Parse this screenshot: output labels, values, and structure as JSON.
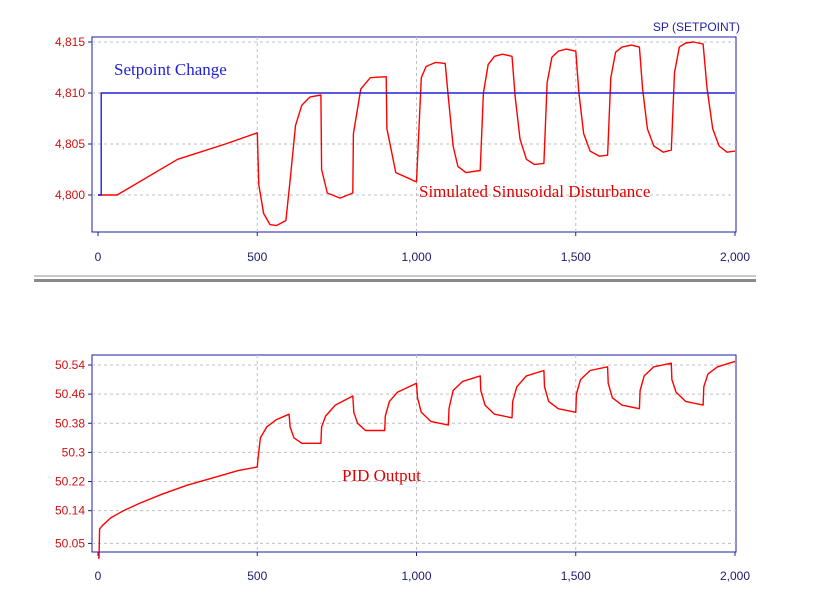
{
  "chart_data": [
    {
      "type": "line",
      "legend_label": "SP (SETPOINT)",
      "annotations": [
        "Setpoint Change",
        "Simulated Sinusoidal Disturbance"
      ],
      "x_ticks": [
        "0",
        "500",
        "1,000",
        "1,500",
        "2,000"
      ],
      "y_ticks": [
        "4,800",
        "4,805",
        "4,810",
        "4,815"
      ],
      "xlim": [
        0,
        2000
      ],
      "ylim": [
        4796.5,
        4816.5
      ],
      "grid": true,
      "colors": {
        "process": "#ff0000",
        "setpoint": "#2020d8",
        "axis": "#1e1ea0",
        "grid": "#c0c0c0"
      },
      "series": [
        {
          "x": [
            0,
            60,
            250,
            320,
            400,
            500,
            505,
            520,
            540,
            560,
            590,
            605,
            620,
            640,
            665,
            700,
            702,
            720,
            760,
            800,
            802,
            825,
            855,
            905,
            907,
            935,
            985,
            990,
            1000,
            1015,
            1030,
            1060,
            1090,
            1100,
            1115,
            1130,
            1155,
            1200,
            1210,
            1225,
            1245,
            1270,
            1300,
            1310,
            1325,
            1345,
            1370,
            1400,
            1410,
            1425,
            1445,
            1470,
            1500,
            1510,
            1525,
            1545,
            1575,
            1600,
            1610,
            1625,
            1645,
            1675,
            1700,
            1710,
            1725,
            1745,
            1775,
            1800,
            1810,
            1825,
            1845,
            1870,
            1900,
            1912,
            1930,
            1950,
            1975,
            2000
          ],
          "y": [
            4800,
            4800,
            4803.5,
            4804.2,
            4805,
            4806.1,
            4801,
            4798.2,
            4797.1,
            4797,
            4797.5,
            4802,
            4806.8,
            4808.8,
            4809.6,
            4809.8,
            4802.5,
            4800.2,
            4799.7,
            4800.2,
            4806,
            4810.4,
            4811.5,
            4811.6,
            4806.5,
            4802.2,
            4801.5,
            4801.4,
            4801.3,
            4811.5,
            4812.6,
            4813,
            4812.9,
            4809.5,
            4804.8,
            4802.8,
            4802.2,
            4802.4,
            4810,
            4812.8,
            4813.6,
            4813.8,
            4813.6,
            4809.6,
            4805.5,
            4803.5,
            4803,
            4803.1,
            4811,
            4813.5,
            4814.1,
            4814.3,
            4814.1,
            4810,
            4806,
            4804.3,
            4803.8,
            4803.9,
            4811.5,
            4814,
            4814.5,
            4814.7,
            4814.5,
            4810.4,
            4806.5,
            4804.8,
            4804.2,
            4804.4,
            4812,
            4814.5,
            4814.9,
            4815,
            4814.8,
            4810.5,
            4806.5,
            4804.8,
            4804.2,
            4804.3
          ]
        },
        {
          "x": [
            0,
            10,
            10,
            2000
          ],
          "y": [
            4800,
            4800,
            4810,
            4810
          ]
        }
      ]
    },
    {
      "type": "line",
      "annotations": [
        "PID Output"
      ],
      "x_ticks": [
        "0",
        "500",
        "1,000",
        "1,500",
        "2,000"
      ],
      "y_ticks": [
        "50.05",
        "50.14",
        "50.22",
        "50.3",
        "50.38",
        "50.46",
        "50.54"
      ],
      "xlim": [
        0,
        2000
      ],
      "ylim": [
        50.0,
        50.56
      ],
      "grid": true,
      "colors": {
        "output": "#ff0000",
        "axis": "#1e1ea0",
        "grid": "#c0c0c0"
      },
      "series": [
        {
          "x": [
            0,
            3,
            5,
            15,
            40,
            80,
            130,
            200,
            280,
            360,
            440,
            500,
            502,
            510,
            530,
            560,
            600,
            603,
            615,
            640,
            700,
            702,
            715,
            745,
            800,
            803,
            815,
            840,
            900,
            902,
            915,
            940,
            1000,
            1003,
            1015,
            1045,
            1100,
            1102,
            1115,
            1145,
            1200,
            1202,
            1215,
            1245,
            1300,
            1302,
            1315,
            1345,
            1400,
            1402,
            1415,
            1445,
            1500,
            1502,
            1515,
            1545,
            1600,
            1602,
            1615,
            1645,
            1700,
            1702,
            1715,
            1745,
            1800,
            1802,
            1815,
            1845,
            1900,
            1902,
            1915,
            1945,
            2000
          ],
          "y": [
            50.01,
            50.01,
            50.09,
            50.1,
            50.12,
            50.14,
            50.16,
            50.185,
            50.21,
            50.23,
            50.25,
            50.26,
            50.28,
            50.34,
            50.37,
            50.39,
            50.405,
            50.37,
            50.34,
            50.325,
            50.325,
            50.37,
            50.4,
            50.43,
            50.455,
            50.41,
            50.38,
            50.36,
            50.36,
            50.4,
            50.44,
            50.465,
            50.49,
            50.45,
            50.41,
            50.385,
            50.375,
            50.42,
            50.47,
            50.495,
            50.51,
            50.47,
            50.43,
            50.405,
            50.395,
            50.44,
            50.48,
            50.51,
            50.525,
            50.48,
            50.44,
            50.42,
            50.41,
            50.46,
            50.5,
            50.525,
            50.535,
            50.49,
            50.45,
            50.43,
            50.42,
            50.47,
            50.51,
            50.535,
            50.545,
            50.5,
            50.465,
            50.44,
            50.43,
            50.48,
            50.515,
            50.535,
            50.55
          ]
        }
      ]
    }
  ]
}
